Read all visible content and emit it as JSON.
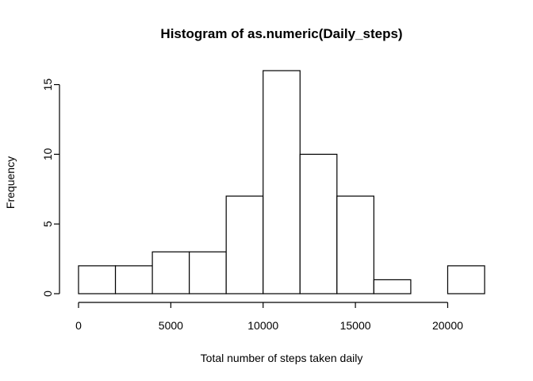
{
  "chart_data": {
    "type": "bar",
    "title": "Histogram of as.numeric(Daily_steps)",
    "xlabel": "Total number of steps taken daily",
    "ylabel": "Frequency",
    "bins": [
      {
        "start": 0,
        "end": 2000,
        "count": 2
      },
      {
        "start": 2000,
        "end": 4000,
        "count": 2
      },
      {
        "start": 4000,
        "end": 6000,
        "count": 3
      },
      {
        "start": 6000,
        "end": 8000,
        "count": 3
      },
      {
        "start": 8000,
        "end": 10000,
        "count": 7
      },
      {
        "start": 10000,
        "end": 12000,
        "count": 16
      },
      {
        "start": 12000,
        "end": 14000,
        "count": 10
      },
      {
        "start": 14000,
        "end": 16000,
        "count": 7
      },
      {
        "start": 16000,
        "end": 18000,
        "count": 1
      },
      {
        "start": 18000,
        "end": 20000,
        "count": 0
      },
      {
        "start": 20000,
        "end": 22000,
        "count": 2
      }
    ],
    "xlim": [
      0,
      22000
    ],
    "ylim": [
      0,
      16
    ],
    "x_ticks": [
      0,
      5000,
      10000,
      15000,
      20000
    ],
    "x_tick_labels": [
      "0",
      "5000",
      "10000",
      "15000",
      "20000"
    ],
    "y_ticks": [
      0,
      5,
      10,
      15
    ],
    "y_tick_labels": [
      "0",
      "5",
      "10",
      "15"
    ]
  }
}
